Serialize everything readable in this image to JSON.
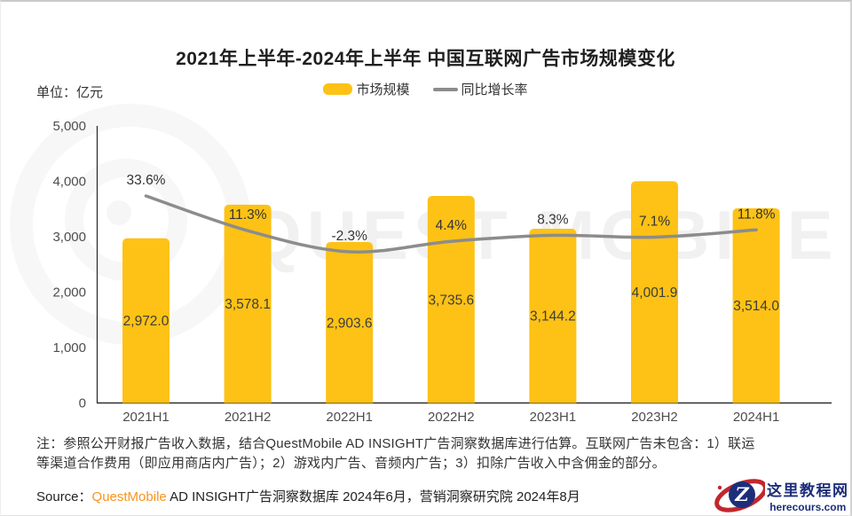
{
  "page": {
    "title": "2021年上半年-2024年上半年 中国互联网广告市场规模变化",
    "unit_label": "单位：亿元",
    "watermark_text": "QUEST MOBILE"
  },
  "legend": {
    "bar_label": "市场规模",
    "line_label": "同比增长率"
  },
  "chart_data": {
    "type": "bar",
    "title": "2021年上半年-2024年上半年 中国互联网广告市场规模变化",
    "categories": [
      "2021H1",
      "2021H2",
      "2022H1",
      "2022H2",
      "2023H1",
      "2023H2",
      "2024H1"
    ],
    "series": [
      {
        "name": "市场规模",
        "type": "bar",
        "unit": "亿元",
        "values": [
          2972.0,
          3578.1,
          2903.6,
          3735.6,
          3144.2,
          4001.9,
          3514.0
        ],
        "labels": [
          "2,972.0",
          "3,578.1",
          "2,903.6",
          "3,735.6",
          "3,144.2",
          "4,001.9",
          "3,514.0"
        ],
        "color": "#FDC215"
      },
      {
        "name": "同比增长率",
        "type": "line",
        "unit": "%",
        "values": [
          33.6,
          11.3,
          -2.3,
          4.4,
          8.3,
          7.1,
          11.8
        ],
        "labels": [
          "33.6%",
          "11.3%",
          "-2.3%",
          "4.4%",
          "8.3%",
          "7.1%",
          "11.8%"
        ],
        "color": "#8C8C8C"
      }
    ],
    "y_axis": {
      "min": 0,
      "max": 5000,
      "step": 1000,
      "tick_labels": [
        "0",
        "1,000",
        "2,000",
        "3,000",
        "4,000",
        "5,000"
      ]
    },
    "grid": false,
    "legend_position": "top"
  },
  "footer": {
    "note_lines": [
      "注：参照公开财报广告收入数据，结合QuestMobile AD INSIGHT广告洞察数据库进行估算。互联网广告未包含：1）联运",
      "等渠道合作费用（即应用商店内广告）；2）游戏内广告、音频内广告；3）扣除广告收入中含佣金的部分。"
    ],
    "source_prefix": "Source：",
    "source_brand": "QuestMobile",
    "source_rest": " AD INSIGHT广告洞察数据库 2024年6月，营销洞察研究院 2024年8月"
  },
  "logo": {
    "monogram": "Z",
    "name_cn": "这里教程网",
    "domain": "herecours.com",
    "red": "#C1272D",
    "navy": "#1C2E7B"
  },
  "colors": {
    "bar": "#FDC215",
    "line": "#8C8C8C",
    "axis": "#2f2f2f",
    "brand_orange": "#F7941D"
  }
}
